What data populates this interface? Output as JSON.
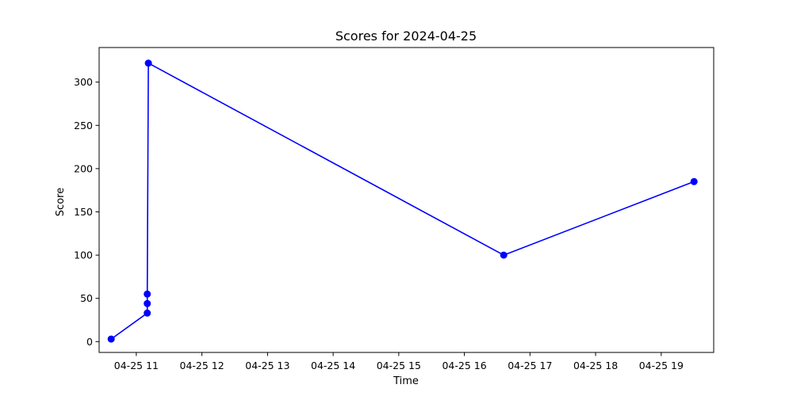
{
  "chart_data": {
    "type": "line",
    "title": "Scores for 2024-04-25",
    "xlabel": "Time",
    "ylabel": "Score",
    "x_ticks": [
      "04-25 11",
      "04-25 12",
      "04-25 13",
      "04-25 14",
      "04-25 15",
      "04-25 16",
      "04-25 17",
      "04-25 18",
      "04-25 19"
    ],
    "y_ticks": [
      0,
      50,
      100,
      150,
      200,
      250,
      300
    ],
    "xlim": [
      "2024-04-25 10:26",
      "2024-04-25 19:48"
    ],
    "ylim": [
      -12.5,
      340
    ],
    "grid": false,
    "series": [
      {
        "color": "#0000ff",
        "marker": "circle",
        "points": [
          {
            "x": "2024-04-25 10:37",
            "y": 3
          },
          {
            "x": "2024-04-25 11:10",
            "y": 33
          },
          {
            "x": "2024-04-25 11:10",
            "y": 44
          },
          {
            "x": "2024-04-25 11:10",
            "y": 55
          },
          {
            "x": "2024-04-25 11:11",
            "y": 322
          },
          {
            "x": "2024-04-25 16:36",
            "y": 100
          },
          {
            "x": "2024-04-25 19:30",
            "y": 185
          }
        ]
      }
    ]
  }
}
